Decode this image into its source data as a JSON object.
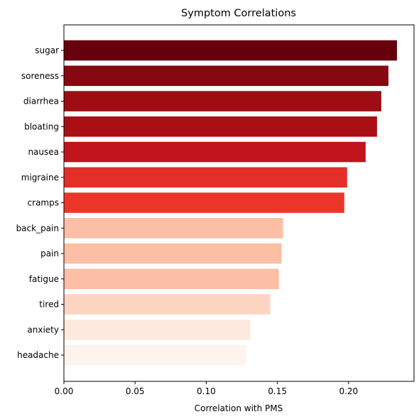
{
  "chart_data": {
    "type": "bar",
    "orientation": "horizontal",
    "title": "Symptom Correlations",
    "xlabel": "Correlation with PMS",
    "ylabel": "",
    "xlim": [
      0.0,
      0.246
    ],
    "xticks": [
      0.0,
      0.05,
      0.1,
      0.15,
      0.2
    ],
    "xtick_labels": [
      "0.00",
      "0.05",
      "0.10",
      "0.15",
      "0.20"
    ],
    "grid": false,
    "categories": [
      "sugar",
      "soreness",
      "diarrhea",
      "bloating",
      "nausea",
      "migraine",
      "cramps",
      "back_pain",
      "pain",
      "fatigue",
      "tired",
      "anxiety",
      "headache"
    ],
    "values": [
      0.234,
      0.228,
      0.223,
      0.22,
      0.212,
      0.199,
      0.197,
      0.154,
      0.153,
      0.151,
      0.145,
      0.131,
      0.128
    ],
    "colors": [
      "#67000d",
      "#860811",
      "#9e0d14",
      "#a90f15",
      "#c0151a",
      "#e32f27",
      "#eb372a",
      "#fcbea5",
      "#fcbea5",
      "#fcbea5",
      "#fdd4c2",
      "#fee9df",
      "#fff3ed"
    ]
  }
}
